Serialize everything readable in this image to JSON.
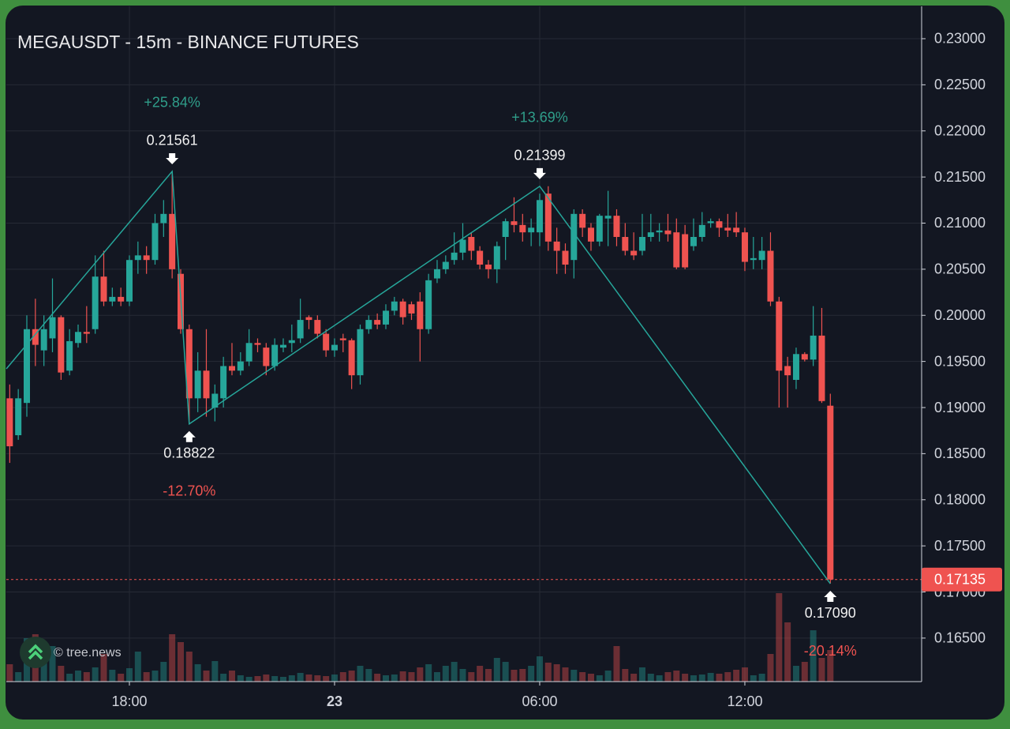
{
  "chart_data": {
    "type": "candlestick",
    "title": "MEGAUSDT - 15m - BINANCE FUTURES",
    "watermark": "© tree.news",
    "up_color": "#26a69a",
    "down_color": "#ef5350",
    "x": [
      14.5,
      14.75,
      15,
      15.25,
      15.5,
      15.75,
      16,
      16.25,
      16.5,
      16.75,
      17,
      17.25,
      17.5,
      17.75,
      18,
      18.25,
      18.5,
      18.75,
      19,
      19.25,
      19.5,
      19.75,
      20,
      20.25,
      20.5,
      20.75,
      21,
      21.25,
      21.5,
      21.75,
      22,
      22.25,
      22.5,
      22.75,
      23,
      23.25,
      23.5,
      23.75,
      24,
      24.25,
      24.5,
      24.75,
      25,
      25.25,
      25.5,
      25.75,
      26,
      26.25,
      26.5,
      26.75,
      27,
      27.25,
      27.5,
      27.75,
      28,
      28.25,
      28.5,
      28.75,
      29,
      29.25,
      29.5,
      29.75,
      30,
      30.25,
      30.5,
      30.75,
      31,
      31.25,
      31.5,
      31.75,
      32,
      32.25,
      32.5,
      32.75,
      33,
      33.25,
      33.5,
      33.75,
      34,
      34.25,
      34.5,
      34.75,
      35,
      35.25,
      35.5,
      35.75,
      36,
      36.25,
      36.5,
      36.75,
      37,
      37.25,
      37.5,
      37.75,
      38,
      38.25,
      38.5
    ],
    "open": [
      0.191,
      0.187,
      0.1905,
      0.1985,
      0.1962,
      0.1975,
      0.1998,
      0.194,
      0.197,
      0.1982,
      0.1985,
      0.2042,
      0.2015,
      0.202,
      0.2015,
      0.206,
      0.2065,
      0.206,
      0.21,
      0.211,
      0.2045,
      0.1985,
      0.191,
      0.194,
      0.19,
      0.191,
      0.1945,
      0.194,
      0.195,
      0.197,
      0.1965,
      0.1945,
      0.1965,
      0.197,
      0.1975,
      0.1998,
      0.1995,
      0.198,
      0.1962,
      0.1975,
      0.1973,
      0.1935,
      0.1985,
      0.1995,
      0.199,
      0.2005,
      0.2015,
      0.2012,
      0.2015,
      0.1985,
      0.204,
      0.205,
      0.206,
      0.2068,
      0.2085,
      0.207,
      0.2055,
      0.205,
      0.2085,
      0.2102,
      0.2098,
      0.209,
      0.209,
      0.2132,
      0.208,
      0.207,
      0.206,
      0.211,
      0.2095,
      0.208,
      0.2105,
      0.2108,
      0.2085,
      0.207,
      0.207,
      0.2085,
      0.209,
      0.2092,
      0.209,
      0.2088,
      0.2075,
      0.2085,
      0.21,
      0.2102,
      0.2095,
      0.2095,
      0.209,
      0.206,
      0.206,
      0.207,
      0.2015,
      0.1945,
      0.193,
      0.1958,
      0.1952,
      0.1978,
      0.1902
    ],
    "high": [
      0.1925,
      0.192,
      0.2,
      0.2018,
      0.2,
      0.204,
      0.2,
      0.1985,
      0.199,
      0.201,
      0.2065,
      0.207,
      0.203,
      0.203,
      0.2065,
      0.208,
      0.2075,
      0.211,
      0.2125,
      0.2156,
      0.205,
      0.199,
      0.196,
      0.1985,
      0.1925,
      0.1955,
      0.197,
      0.196,
      0.1985,
      0.1975,
      0.197,
      0.1975,
      0.1975,
      0.199,
      0.2018,
      0.2,
      0.2,
      0.1985,
      0.1975,
      0.198,
      0.1975,
      0.199,
      0.2,
      0.2002,
      0.2012,
      0.202,
      0.2018,
      0.2015,
      0.2025,
      0.2045,
      0.206,
      0.2065,
      0.209,
      0.21,
      0.209,
      0.2075,
      0.206,
      0.208,
      0.2105,
      0.2128,
      0.211,
      0.2105,
      0.2132,
      0.214,
      0.2095,
      0.2078,
      0.2115,
      0.2115,
      0.21,
      0.211,
      0.2135,
      0.2115,
      0.21,
      0.209,
      0.211,
      0.211,
      0.21,
      0.211,
      0.2105,
      0.2098,
      0.2105,
      0.2112,
      0.2105,
      0.2105,
      0.211,
      0.2112,
      0.2095,
      0.2085,
      0.2085,
      0.209,
      0.202,
      0.1955,
      0.1965,
      0.196,
      0.201,
      0.2008,
      0.1915
    ],
    "low": [
      0.184,
      0.1865,
      0.189,
      0.1945,
      0.1945,
      0.196,
      0.193,
      0.1935,
      0.1965,
      0.197,
      0.198,
      0.201,
      0.201,
      0.201,
      0.201,
      0.2045,
      0.2045,
      0.2055,
      0.2085,
      0.204,
      0.198,
      0.1882,
      0.1895,
      0.189,
      0.1885,
      0.19,
      0.1935,
      0.1935,
      0.1945,
      0.196,
      0.1935,
      0.194,
      0.196,
      0.196,
      0.197,
      0.1985,
      0.1975,
      0.1955,
      0.1955,
      0.196,
      0.192,
      0.1925,
      0.198,
      0.1985,
      0.1985,
      0.2,
      0.199,
      0.1995,
      0.195,
      0.198,
      0.2035,
      0.2045,
      0.2055,
      0.206,
      0.206,
      0.205,
      0.204,
      0.2035,
      0.206,
      0.209,
      0.208,
      0.2075,
      0.2075,
      0.207,
      0.2045,
      0.2045,
      0.204,
      0.2085,
      0.207,
      0.2075,
      0.2075,
      0.2075,
      0.2065,
      0.206,
      0.2065,
      0.208,
      0.208,
      0.208,
      0.205,
      0.205,
      0.207,
      0.208,
      0.2095,
      0.2085,
      0.2085,
      0.2085,
      0.2048,
      0.205,
      0.205,
      0.201,
      0.19,
      0.19,
      0.192,
      0.195,
      0.1945,
      0.1905,
      0.1709
    ],
    "close": [
      0.1858,
      0.191,
      0.1985,
      0.1968,
      0.1985,
      0.1998,
      0.1938,
      0.1972,
      0.1982,
      0.198,
      0.2042,
      0.2015,
      0.202,
      0.2015,
      0.206,
      0.2065,
      0.206,
      0.21,
      0.211,
      0.205,
      0.1985,
      0.191,
      0.194,
      0.191,
      0.1915,
      0.1945,
      0.194,
      0.195,
      0.197,
      0.1968,
      0.1945,
      0.1968,
      0.1968,
      0.1973,
      0.1995,
      0.1995,
      0.198,
      0.1962,
      0.1968,
      0.1973,
      0.1935,
      0.1985,
      0.1995,
      0.199,
      0.2005,
      0.2015,
      0.1998,
      0.2002,
      0.1985,
      0.2038,
      0.205,
      0.2058,
      0.2068,
      0.2082,
      0.207,
      0.2055,
      0.205,
      0.2075,
      0.2102,
      0.2098,
      0.209,
      0.2095,
      0.2125,
      0.208,
      0.207,
      0.2055,
      0.211,
      0.2095,
      0.208,
      0.2108,
      0.2108,
      0.2085,
      0.207,
      0.2065,
      0.2085,
      0.209,
      0.2092,
      0.2088,
      0.2052,
      0.2052,
      0.2085,
      0.2098,
      0.2102,
      0.2095,
      0.2092,
      0.209,
      0.2058,
      0.2062,
      0.207,
      0.2015,
      0.194,
      0.1935,
      0.1958,
      0.1952,
      0.1978,
      0.1907,
      0.17135
    ],
    "volume": [
      22,
      12,
      55,
      60,
      35,
      45,
      20,
      10,
      14,
      12,
      18,
      35,
      15,
      10,
      17,
      38,
      12,
      14,
      25,
      60,
      50,
      38,
      22,
      14,
      26,
      10,
      14,
      8,
      6,
      7,
      9,
      7,
      6,
      8,
      11,
      9,
      8,
      7,
      9,
      12,
      14,
      20,
      16,
      10,
      8,
      9,
      13,
      12,
      18,
      22,
      12,
      20,
      25,
      16,
      12,
      20,
      16,
      30,
      25,
      15,
      16,
      20,
      32,
      24,
      22,
      18,
      15,
      12,
      10,
      8,
      14,
      45,
      16,
      10,
      18,
      10,
      8,
      12,
      14,
      10,
      8,
      9,
      11,
      10,
      12,
      15,
      18,
      8,
      10,
      35,
      112,
      75,
      20,
      25,
      65,
      30,
      40
    ],
    "vlim": [
      0,
      120
    ],
    "last_price": 0.17135,
    "pivots": [
      {
        "x": 14.4,
        "value": 0.1942
      },
      {
        "x": 19.25,
        "value": 0.21561,
        "label": "0.21561",
        "change": {
          "value": 25.84,
          "label": "+25.84%"
        }
      },
      {
        "x": 19.75,
        "value": 0.18822,
        "label": "0.18822",
        "change": {
          "value": -12.7,
          "label": "-12.70%"
        }
      },
      {
        "x": 30,
        "value": 0.21399,
        "label": "0.21399",
        "change": {
          "value": 13.69,
          "label": "+13.69%"
        }
      },
      {
        "x": 38.5,
        "value": 0.1709,
        "label": "0.17090",
        "change": {
          "value": -20.14,
          "label": "-20.14%"
        }
      }
    ],
    "xlim": [
      14.4,
      41.17
    ],
    "xticks": [
      {
        "value": 18,
        "label": "18:00"
      },
      {
        "value": 24,
        "label": "23"
      },
      {
        "value": 30,
        "label": "06:00"
      },
      {
        "value": 36,
        "label": "12:00"
      }
    ],
    "ylim": [
      0.16028,
      0.23351
    ],
    "yticks": [
      {
        "value": 0.165,
        "label": "0.16500"
      },
      {
        "value": 0.17,
        "label": "0.17000"
      },
      {
        "value": 0.175,
        "label": "0.17500"
      },
      {
        "value": 0.18,
        "label": "0.18000"
      },
      {
        "value": 0.185,
        "label": "0.18500"
      },
      {
        "value": 0.19,
        "label": "0.19000"
      },
      {
        "value": 0.195,
        "label": "0.19500"
      },
      {
        "value": 0.2,
        "label": "0.20000"
      },
      {
        "value": 0.205,
        "label": "0.20500"
      },
      {
        "value": 0.21,
        "label": "0.21000"
      },
      {
        "value": 0.215,
        "label": "0.21500"
      },
      {
        "value": 0.22,
        "label": "0.22000"
      },
      {
        "value": 0.225,
        "label": "0.22500"
      },
      {
        "value": 0.23,
        "label": "0.23000"
      }
    ],
    "grid": true
  }
}
